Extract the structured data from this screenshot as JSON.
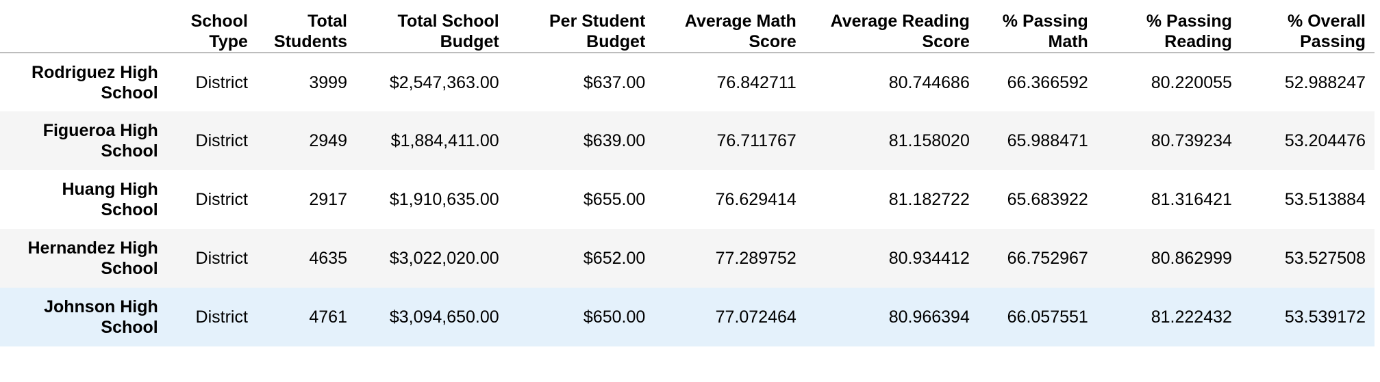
{
  "table": {
    "columns": [
      "",
      "School\nType",
      "Total\nStudents",
      "Total School\nBudget",
      "Per Student\nBudget",
      "Average Math\nScore",
      "Average Reading\nScore",
      "% Passing\nMath",
      "% Passing\nReading",
      "% Overall\nPassing"
    ],
    "rows": [
      {
        "name": "Rodriguez High School",
        "type": "District",
        "total_students": "3999",
        "total_budget": "$2,547,363.00",
        "per_student_budget": "$637.00",
        "avg_math": "76.842711",
        "avg_reading": "80.744686",
        "pct_math": "66.366592",
        "pct_reading": "80.220055",
        "pct_overall": "52.988247"
      },
      {
        "name": "Figueroa High School",
        "type": "District",
        "total_students": "2949",
        "total_budget": "$1,884,411.00",
        "per_student_budget": "$639.00",
        "avg_math": "76.711767",
        "avg_reading": "81.158020",
        "pct_math": "65.988471",
        "pct_reading": "80.739234",
        "pct_overall": "53.204476"
      },
      {
        "name": "Huang High School",
        "type": "District",
        "total_students": "2917",
        "total_budget": "$1,910,635.00",
        "per_student_budget": "$655.00",
        "avg_math": "76.629414",
        "avg_reading": "81.182722",
        "pct_math": "65.683922",
        "pct_reading": "81.316421",
        "pct_overall": "53.513884"
      },
      {
        "name": "Hernandez High School",
        "type": "District",
        "total_students": "4635",
        "total_budget": "$3,022,020.00",
        "per_student_budget": "$652.00",
        "avg_math": "77.289752",
        "avg_reading": "80.934412",
        "pct_math": "66.752967",
        "pct_reading": "80.862999",
        "pct_overall": "53.527508"
      },
      {
        "name": "Johnson High School",
        "type": "District",
        "total_students": "4761",
        "total_budget": "$3,094,650.00",
        "per_student_budget": "$650.00",
        "avg_math": "77.072464",
        "avg_reading": "80.966394",
        "pct_math": "66.057551",
        "pct_reading": "81.222432",
        "pct_overall": "53.539172"
      }
    ]
  }
}
